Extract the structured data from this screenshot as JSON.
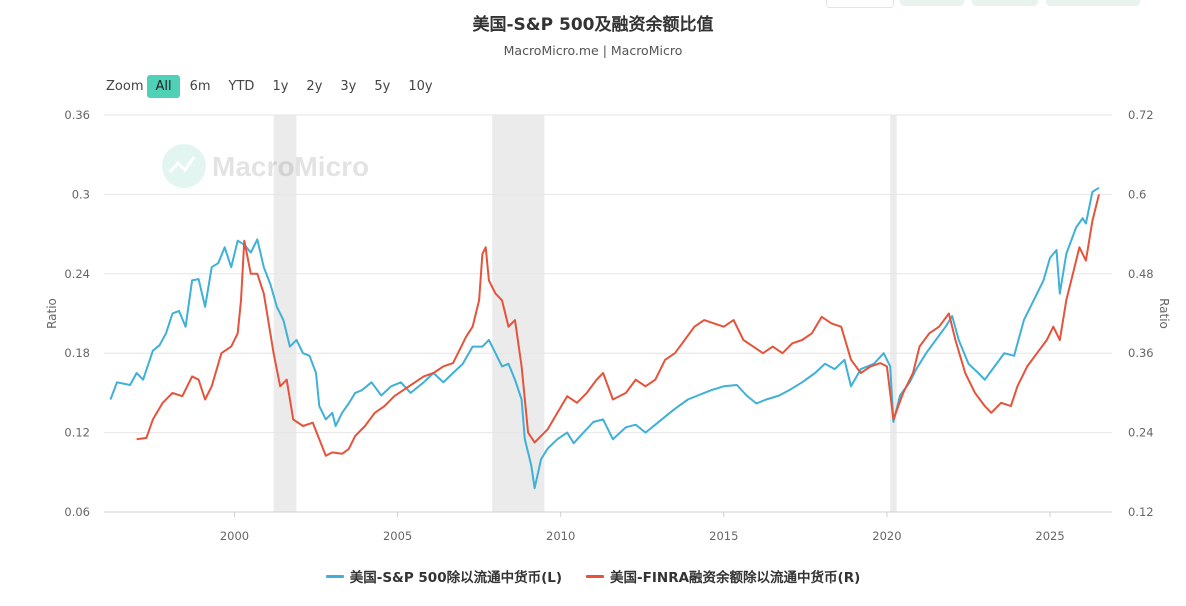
{
  "header": {
    "title": "美国-S&P 500及融资余额比值",
    "subtitle": "MacroMicro.me | MacroMicro"
  },
  "toolbar": {
    "zoom_label": "Zoom",
    "zoom_options": [
      "All",
      "6m",
      "YTD",
      "1y",
      "2y",
      "3y",
      "5y",
      "10y"
    ],
    "active": "All"
  },
  "watermark": {
    "text": "MacroMicro"
  },
  "colors": {
    "series_left": "#3fb0d8",
    "series_right": "#e5533b",
    "recession": "#ebebeb",
    "active_zoom": "#4fd1b8"
  },
  "chart_data": {
    "type": "line",
    "title": "美国-S&P 500及融资余额比值",
    "subtitle": "MacroMicro.me | MacroMicro",
    "xlabel": "",
    "ylabel_left": "Ratio",
    "ylabel_right": "Ratio",
    "x_range": [
      1996.0,
      2026.9
    ],
    "x_ticks": [
      "2000",
      "2005",
      "2010",
      "2015",
      "2020",
      "2025"
    ],
    "ylim_left": [
      0.06,
      0.36
    ],
    "yticks_left": [
      "0.06",
      "0.12",
      "0.18",
      "0.24",
      "0.3",
      "0.36"
    ],
    "ylim_right": [
      0.12,
      0.72
    ],
    "yticks_right": [
      "0.12",
      "0.24",
      "0.36",
      "0.48",
      "0.6",
      "0.72"
    ],
    "grid": true,
    "legend": "bottom",
    "shaded_periods": [
      [
        2001.2,
        2001.9
      ],
      [
        2007.9,
        2009.5
      ],
      [
        2020.1,
        2020.3
      ]
    ],
    "series": [
      {
        "name": "美国-S&P 500除以流通中货币(L)",
        "axis": "left",
        "points": [
          [
            1996.2,
            0.145
          ],
          [
            1996.4,
            0.158
          ],
          [
            1996.8,
            0.156
          ],
          [
            1997.0,
            0.165
          ],
          [
            1997.2,
            0.16
          ],
          [
            1997.5,
            0.182
          ],
          [
            1997.7,
            0.186
          ],
          [
            1997.9,
            0.195
          ],
          [
            1998.1,
            0.21
          ],
          [
            1998.3,
            0.212
          ],
          [
            1998.5,
            0.2
          ],
          [
            1998.7,
            0.235
          ],
          [
            1998.9,
            0.236
          ],
          [
            1999.1,
            0.215
          ],
          [
            1999.3,
            0.245
          ],
          [
            1999.5,
            0.248
          ],
          [
            1999.7,
            0.26
          ],
          [
            1999.9,
            0.245
          ],
          [
            2000.1,
            0.265
          ],
          [
            2000.3,
            0.262
          ],
          [
            2000.5,
            0.256
          ],
          [
            2000.7,
            0.266
          ],
          [
            2000.9,
            0.245
          ],
          [
            2001.1,
            0.232
          ],
          [
            2001.3,
            0.215
          ],
          [
            2001.5,
            0.205
          ],
          [
            2001.7,
            0.185
          ],
          [
            2001.9,
            0.19
          ],
          [
            2002.1,
            0.18
          ],
          [
            2002.3,
            0.178
          ],
          [
            2002.5,
            0.165
          ],
          [
            2002.6,
            0.14
          ],
          [
            2002.8,
            0.13
          ],
          [
            2003.0,
            0.135
          ],
          [
            2003.1,
            0.125
          ],
          [
            2003.3,
            0.135
          ],
          [
            2003.5,
            0.142
          ],
          [
            2003.7,
            0.15
          ],
          [
            2003.9,
            0.152
          ],
          [
            2004.2,
            0.158
          ],
          [
            2004.5,
            0.148
          ],
          [
            2004.8,
            0.155
          ],
          [
            2005.1,
            0.158
          ],
          [
            2005.4,
            0.15
          ],
          [
            2005.8,
            0.158
          ],
          [
            2006.1,
            0.165
          ],
          [
            2006.4,
            0.158
          ],
          [
            2006.7,
            0.165
          ],
          [
            2007.0,
            0.172
          ],
          [
            2007.3,
            0.185
          ],
          [
            2007.6,
            0.185
          ],
          [
            2007.8,
            0.19
          ],
          [
            2008.0,
            0.18
          ],
          [
            2008.2,
            0.17
          ],
          [
            2008.4,
            0.172
          ],
          [
            2008.6,
            0.16
          ],
          [
            2008.8,
            0.145
          ],
          [
            2008.9,
            0.115
          ],
          [
            2009.0,
            0.105
          ],
          [
            2009.1,
            0.095
          ],
          [
            2009.2,
            0.078
          ],
          [
            2009.4,
            0.1
          ],
          [
            2009.6,
            0.108
          ],
          [
            2009.9,
            0.115
          ],
          [
            2010.2,
            0.12
          ],
          [
            2010.4,
            0.112
          ],
          [
            2010.7,
            0.12
          ],
          [
            2011.0,
            0.128
          ],
          [
            2011.3,
            0.13
          ],
          [
            2011.6,
            0.115
          ],
          [
            2012.0,
            0.124
          ],
          [
            2012.3,
            0.126
          ],
          [
            2012.6,
            0.12
          ],
          [
            2012.9,
            0.126
          ],
          [
            2013.2,
            0.132
          ],
          [
            2013.5,
            0.138
          ],
          [
            2013.9,
            0.145
          ],
          [
            2014.2,
            0.148
          ],
          [
            2014.6,
            0.152
          ],
          [
            2015.0,
            0.155
          ],
          [
            2015.4,
            0.156
          ],
          [
            2015.7,
            0.148
          ],
          [
            2016.0,
            0.142
          ],
          [
            2016.3,
            0.145
          ],
          [
            2016.7,
            0.148
          ],
          [
            2017.0,
            0.152
          ],
          [
            2017.4,
            0.158
          ],
          [
            2017.8,
            0.165
          ],
          [
            2018.1,
            0.172
          ],
          [
            2018.4,
            0.168
          ],
          [
            2018.7,
            0.175
          ],
          [
            2018.9,
            0.155
          ],
          [
            2019.2,
            0.168
          ],
          [
            2019.6,
            0.172
          ],
          [
            2019.9,
            0.18
          ],
          [
            2020.1,
            0.17
          ],
          [
            2020.2,
            0.128
          ],
          [
            2020.4,
            0.148
          ],
          [
            2020.7,
            0.158
          ],
          [
            2020.9,
            0.168
          ],
          [
            2021.2,
            0.18
          ],
          [
            2021.5,
            0.19
          ],
          [
            2021.8,
            0.2
          ],
          [
            2022.0,
            0.208
          ],
          [
            2022.2,
            0.19
          ],
          [
            2022.5,
            0.172
          ],
          [
            2022.8,
            0.165
          ],
          [
            2023.0,
            0.16
          ],
          [
            2023.3,
            0.17
          ],
          [
            2023.6,
            0.18
          ],
          [
            2023.9,
            0.178
          ],
          [
            2024.2,
            0.205
          ],
          [
            2024.5,
            0.22
          ],
          [
            2024.8,
            0.235
          ],
          [
            2025.0,
            0.252
          ],
          [
            2025.2,
            0.258
          ],
          [
            2025.3,
            0.225
          ],
          [
            2025.5,
            0.255
          ],
          [
            2025.8,
            0.275
          ],
          [
            2026.0,
            0.282
          ],
          [
            2026.1,
            0.278
          ],
          [
            2026.3,
            0.302
          ],
          [
            2026.5,
            0.305
          ]
        ]
      },
      {
        "name": "美国-FINRA融资余额除以流通中货币(R)",
        "axis": "right",
        "points": [
          [
            1997.0,
            0.23
          ],
          [
            1997.3,
            0.232
          ],
          [
            1997.5,
            0.26
          ],
          [
            1997.8,
            0.285
          ],
          [
            1998.1,
            0.3
          ],
          [
            1998.4,
            0.295
          ],
          [
            1998.7,
            0.325
          ],
          [
            1998.9,
            0.32
          ],
          [
            1999.1,
            0.29
          ],
          [
            1999.3,
            0.31
          ],
          [
            1999.6,
            0.36
          ],
          [
            1999.9,
            0.37
          ],
          [
            2000.1,
            0.39
          ],
          [
            2000.2,
            0.44
          ],
          [
            2000.3,
            0.53
          ],
          [
            2000.5,
            0.48
          ],
          [
            2000.7,
            0.48
          ],
          [
            2000.9,
            0.45
          ],
          [
            2001.0,
            0.42
          ],
          [
            2001.2,
            0.36
          ],
          [
            2001.4,
            0.31
          ],
          [
            2001.6,
            0.32
          ],
          [
            2001.8,
            0.26
          ],
          [
            2002.1,
            0.25
          ],
          [
            2002.4,
            0.255
          ],
          [
            2002.6,
            0.23
          ],
          [
            2002.8,
            0.205
          ],
          [
            2003.0,
            0.21
          ],
          [
            2003.3,
            0.208
          ],
          [
            2003.5,
            0.215
          ],
          [
            2003.7,
            0.235
          ],
          [
            2004.0,
            0.25
          ],
          [
            2004.3,
            0.27
          ],
          [
            2004.6,
            0.28
          ],
          [
            2004.9,
            0.295
          ],
          [
            2005.2,
            0.305
          ],
          [
            2005.5,
            0.315
          ],
          [
            2005.8,
            0.325
          ],
          [
            2006.1,
            0.33
          ],
          [
            2006.4,
            0.34
          ],
          [
            2006.7,
            0.345
          ],
          [
            2006.9,
            0.365
          ],
          [
            2007.1,
            0.385
          ],
          [
            2007.3,
            0.4
          ],
          [
            2007.5,
            0.44
          ],
          [
            2007.6,
            0.51
          ],
          [
            2007.7,
            0.52
          ],
          [
            2007.8,
            0.47
          ],
          [
            2008.0,
            0.45
          ],
          [
            2008.2,
            0.44
          ],
          [
            2008.4,
            0.4
          ],
          [
            2008.6,
            0.41
          ],
          [
            2008.8,
            0.34
          ],
          [
            2009.0,
            0.24
          ],
          [
            2009.2,
            0.225
          ],
          [
            2009.4,
            0.235
          ],
          [
            2009.6,
            0.245
          ],
          [
            2009.9,
            0.27
          ],
          [
            2010.2,
            0.295
          ],
          [
            2010.5,
            0.285
          ],
          [
            2010.8,
            0.3
          ],
          [
            2011.1,
            0.32
          ],
          [
            2011.3,
            0.33
          ],
          [
            2011.6,
            0.29
          ],
          [
            2012.0,
            0.3
          ],
          [
            2012.3,
            0.32
          ],
          [
            2012.6,
            0.31
          ],
          [
            2012.9,
            0.32
          ],
          [
            2013.2,
            0.35
          ],
          [
            2013.5,
            0.36
          ],
          [
            2013.8,
            0.38
          ],
          [
            2014.1,
            0.4
          ],
          [
            2014.4,
            0.41
          ],
          [
            2014.7,
            0.405
          ],
          [
            2015.0,
            0.4
          ],
          [
            2015.3,
            0.41
          ],
          [
            2015.6,
            0.38
          ],
          [
            2015.9,
            0.37
          ],
          [
            2016.2,
            0.36
          ],
          [
            2016.5,
            0.37
          ],
          [
            2016.8,
            0.36
          ],
          [
            2017.1,
            0.375
          ],
          [
            2017.4,
            0.38
          ],
          [
            2017.7,
            0.39
          ],
          [
            2018.0,
            0.415
          ],
          [
            2018.3,
            0.405
          ],
          [
            2018.6,
            0.4
          ],
          [
            2018.9,
            0.35
          ],
          [
            2019.2,
            0.33
          ],
          [
            2019.5,
            0.34
          ],
          [
            2019.8,
            0.345
          ],
          [
            2020.0,
            0.34
          ],
          [
            2020.2,
            0.26
          ],
          [
            2020.5,
            0.3
          ],
          [
            2020.8,
            0.33
          ],
          [
            2021.0,
            0.37
          ],
          [
            2021.3,
            0.39
          ],
          [
            2021.6,
            0.4
          ],
          [
            2021.9,
            0.42
          ],
          [
            2022.1,
            0.38
          ],
          [
            2022.4,
            0.33
          ],
          [
            2022.7,
            0.3
          ],
          [
            2023.0,
            0.28
          ],
          [
            2023.2,
            0.27
          ],
          [
            2023.5,
            0.285
          ],
          [
            2023.8,
            0.28
          ],
          [
            2024.0,
            0.31
          ],
          [
            2024.3,
            0.34
          ],
          [
            2024.6,
            0.36
          ],
          [
            2024.9,
            0.38
          ],
          [
            2025.1,
            0.4
          ],
          [
            2025.3,
            0.38
          ],
          [
            2025.5,
            0.44
          ],
          [
            2025.7,
            0.48
          ],
          [
            2025.9,
            0.52
          ],
          [
            2026.1,
            0.5
          ],
          [
            2026.3,
            0.56
          ],
          [
            2026.5,
            0.6
          ]
        ]
      }
    ]
  }
}
